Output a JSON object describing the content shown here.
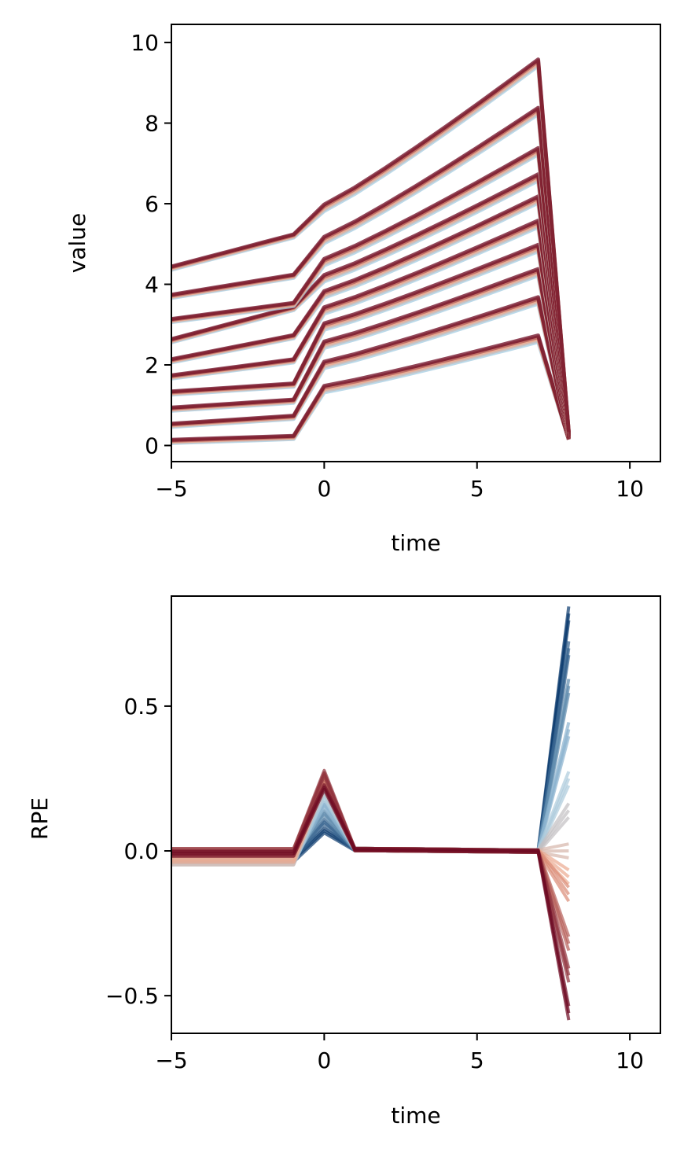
{
  "chart_data": [
    {
      "type": "line",
      "xlabel": "time",
      "ylabel": "value",
      "xlim": [
        -5,
        11
      ],
      "ylim": [
        -0.4,
        10.45
      ],
      "xticks": [
        -5,
        0,
        5,
        10
      ],
      "yticks": [
        0,
        2,
        4,
        6,
        8,
        10
      ],
      "xtick_labels": [
        "−5",
        "0",
        "5",
        "10"
      ],
      "ytick_labels": [
        "0",
        "2",
        "4",
        "6",
        "8",
        "10"
      ],
      "x": [
        -5,
        -4,
        -3,
        -2,
        -1,
        0,
        1,
        2,
        3,
        4,
        5,
        6,
        7,
        8
      ],
      "grid": false,
      "legend": "none",
      "colormap": [
        "#0b3b6e",
        "#a6cde3",
        "#f2a788",
        "#6e0a22"
      ],
      "curves": [
        {
          "pre_start": 0.1,
          "pre_end": 0.2,
          "level": 1.4,
          "peak": 2.65
        },
        {
          "pre_start": 0.5,
          "pre_end": 0.7,
          "level": 2.0,
          "peak": 3.6
        },
        {
          "pre_start": 0.9,
          "pre_end": 1.1,
          "level": 2.5,
          "peak": 4.3
        },
        {
          "pre_start": 1.3,
          "pre_end": 1.5,
          "level": 2.95,
          "peak": 4.9
        },
        {
          "pre_start": 1.7,
          "pre_end": 2.1,
          "level": 3.35,
          "peak": 5.5
        },
        {
          "pre_start": 2.1,
          "pre_end": 2.7,
          "level": 3.75,
          "peak": 6.1
        },
        {
          "pre_start": 2.6,
          "pre_end": 3.4,
          "level": 4.15,
          "peak": 6.65
        },
        {
          "pre_start": 3.1,
          "pre_end": 3.5,
          "level": 4.55,
          "peak": 7.3
        },
        {
          "pre_start": 3.7,
          "pre_end": 4.2,
          "level": 5.1,
          "peak": 8.3
        },
        {
          "pre_start": 4.4,
          "pre_end": 5.2,
          "level": 5.9,
          "peak": 9.5
        }
      ]
    },
    {
      "type": "line",
      "xlabel": "time",
      "ylabel": "RPE",
      "xlim": [
        -5,
        11
      ],
      "ylim": [
        -0.63,
        0.88
      ],
      "xticks": [
        -5,
        0,
        5,
        10
      ],
      "yticks": [
        -0.5,
        0,
        0.5
      ],
      "xtick_labels": [
        "−5",
        "0",
        "5",
        "10"
      ],
      "ytick_labels": [
        "−0.5",
        "0.0",
        "0.5"
      ],
      "x": [
        -5,
        -4,
        -3,
        -2,
        -1,
        0,
        1,
        2,
        3,
        4,
        5,
        6,
        7,
        8
      ],
      "grid": false,
      "legend": "none",
      "colormap": [
        "#0b3b6e",
        "#a6cde3",
        "#f2a788",
        "#6e0a22"
      ],
      "curves": [
        {
          "pre": -0.03,
          "bump": 0.07,
          "final": 0.82
        },
        {
          "pre": -0.02,
          "bump": 0.1,
          "final": 0.7
        },
        {
          "pre": -0.01,
          "bump": 0.13,
          "final": 0.57
        },
        {
          "pre": -0.03,
          "bump": 0.16,
          "final": 0.42
        },
        {
          "pre": -0.04,
          "bump": 0.19,
          "final": 0.25
        },
        {
          "pre": -0.02,
          "bump": 0.21,
          "final": 0.14
        },
        {
          "pre": -0.04,
          "bump": 0.23,
          "final": 0.0
        },
        {
          "pre": -0.03,
          "bump": 0.24,
          "final": -0.09
        },
        {
          "pre": -0.01,
          "bump": 0.25,
          "final": -0.15
        },
        {
          "pre": 0.0,
          "bump": 0.26,
          "final": -0.32
        },
        {
          "pre": 0.0,
          "bump": 0.27,
          "final": -0.43
        },
        {
          "pre": -0.01,
          "bump": 0.22,
          "final": -0.56
        }
      ]
    }
  ]
}
